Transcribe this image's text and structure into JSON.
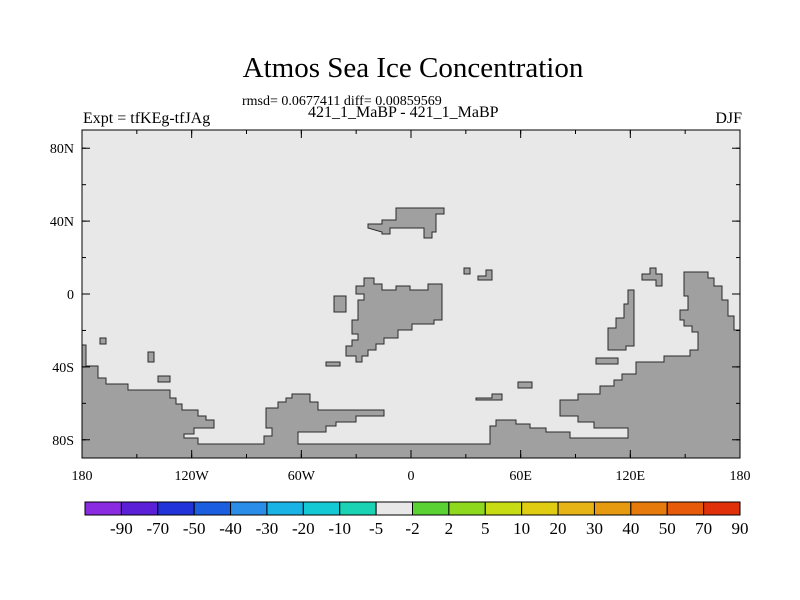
{
  "title": "Atmos Sea Ice Concentration",
  "stats": "rmsd= 0.0677411  diff= 0.00859569",
  "experiment": "Expt = tfKEg-tfJAg",
  "subtitle": "421_1_MaBP - 421_1_MaBP",
  "season": "DJF",
  "map": {
    "lon_range": [
      -180,
      180
    ],
    "lat_range": [
      -90,
      90
    ],
    "ocean_color": "#e8e8e8",
    "land_color": "#a0a0a0",
    "lon_ticks": [
      {
        "value": -180,
        "label": "180"
      },
      {
        "value": -120,
        "label": "120W"
      },
      {
        "value": -60,
        "label": "60W"
      },
      {
        "value": 0,
        "label": "0"
      },
      {
        "value": 60,
        "label": "60E"
      },
      {
        "value": 120,
        "label": "120E"
      },
      {
        "value": 180,
        "label": "180"
      }
    ],
    "lat_ticks": [
      {
        "value": 80,
        "label": "80N"
      },
      {
        "value": 40,
        "label": "40N"
      },
      {
        "value": 0,
        "label": "0"
      },
      {
        "value": -40,
        "label": "40S"
      },
      {
        "value": -80,
        "label": "80S"
      }
    ]
  },
  "colorbar": {
    "colors": [
      "#8a2be2",
      "#5a1fd6",
      "#2233d9",
      "#1b5fe0",
      "#2a8ee8",
      "#19b3e6",
      "#14c8d4",
      "#19d3b4",
      "#e8e8e8",
      "#5ad233",
      "#8ed81e",
      "#c8dc14",
      "#e0cc10",
      "#e6b414",
      "#e69a0f",
      "#e67a0a",
      "#e65a0a",
      "#e0300a"
    ],
    "labels": [
      "-90",
      "-70",
      "-50",
      "-40",
      "-30",
      "-20",
      "-10",
      "-5",
      "-2",
      "2",
      "5",
      "10",
      "20",
      "30",
      "40",
      "50",
      "70",
      "90"
    ]
  }
}
